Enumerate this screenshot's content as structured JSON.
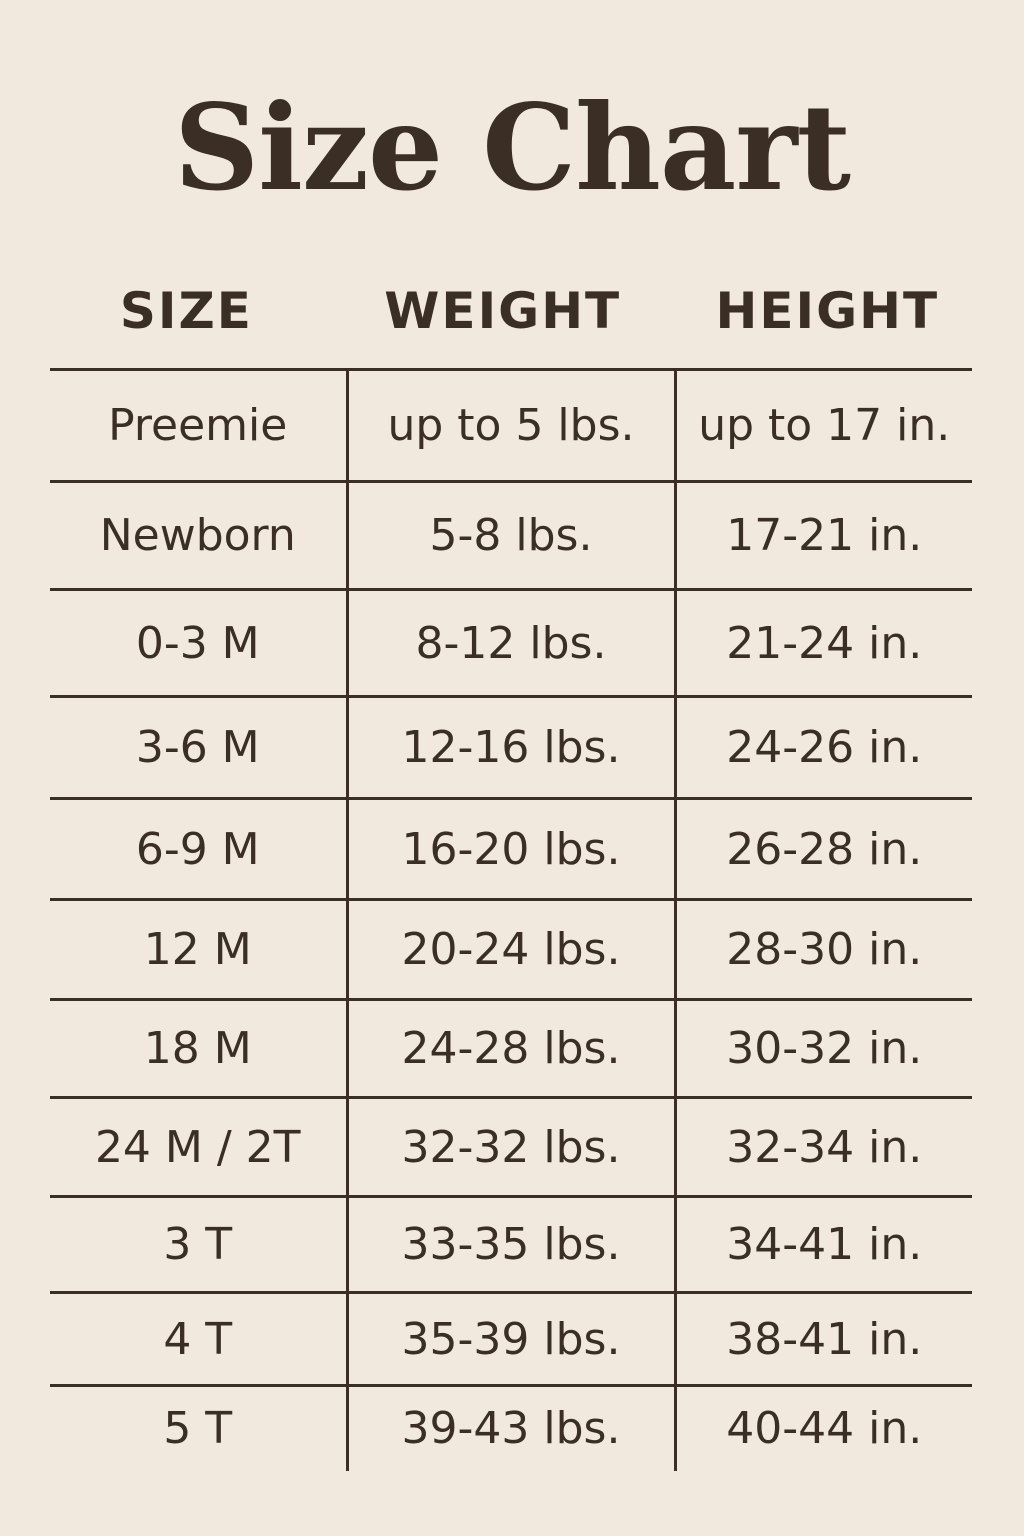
{
  "title": "Size Chart",
  "columns": [
    "SIZE",
    "WEIGHT",
    "HEIGHT"
  ],
  "rows": [
    [
      "Preemie",
      "up to 5 lbs.",
      "up to 17 in."
    ],
    [
      "Newborn",
      "5-8 lbs.",
      "17-21 in."
    ],
    [
      "0-3 M",
      "8-12 lbs.",
      "21-24 in."
    ],
    [
      "3-6 M",
      "12-16 lbs.",
      "24-26 in."
    ],
    [
      "6-9 M",
      "16-20 lbs.",
      "26-28 in."
    ],
    [
      "12 M",
      "20-24 lbs.",
      "28-30 in."
    ],
    [
      "18 M",
      "24-28 lbs.",
      "30-32 in."
    ],
    [
      "24 M / 2T",
      "32-32 lbs.",
      "32-34 in."
    ],
    [
      "3 T",
      "33-35 lbs.",
      "34-41 in."
    ],
    [
      "4 T",
      "35-39 lbs.",
      "38-41 in."
    ],
    [
      "5 T",
      "39-43 lbs.",
      "40-44 in."
    ]
  ],
  "colors": {
    "background": "#f1e9dd",
    "text": "#3a2e25"
  }
}
